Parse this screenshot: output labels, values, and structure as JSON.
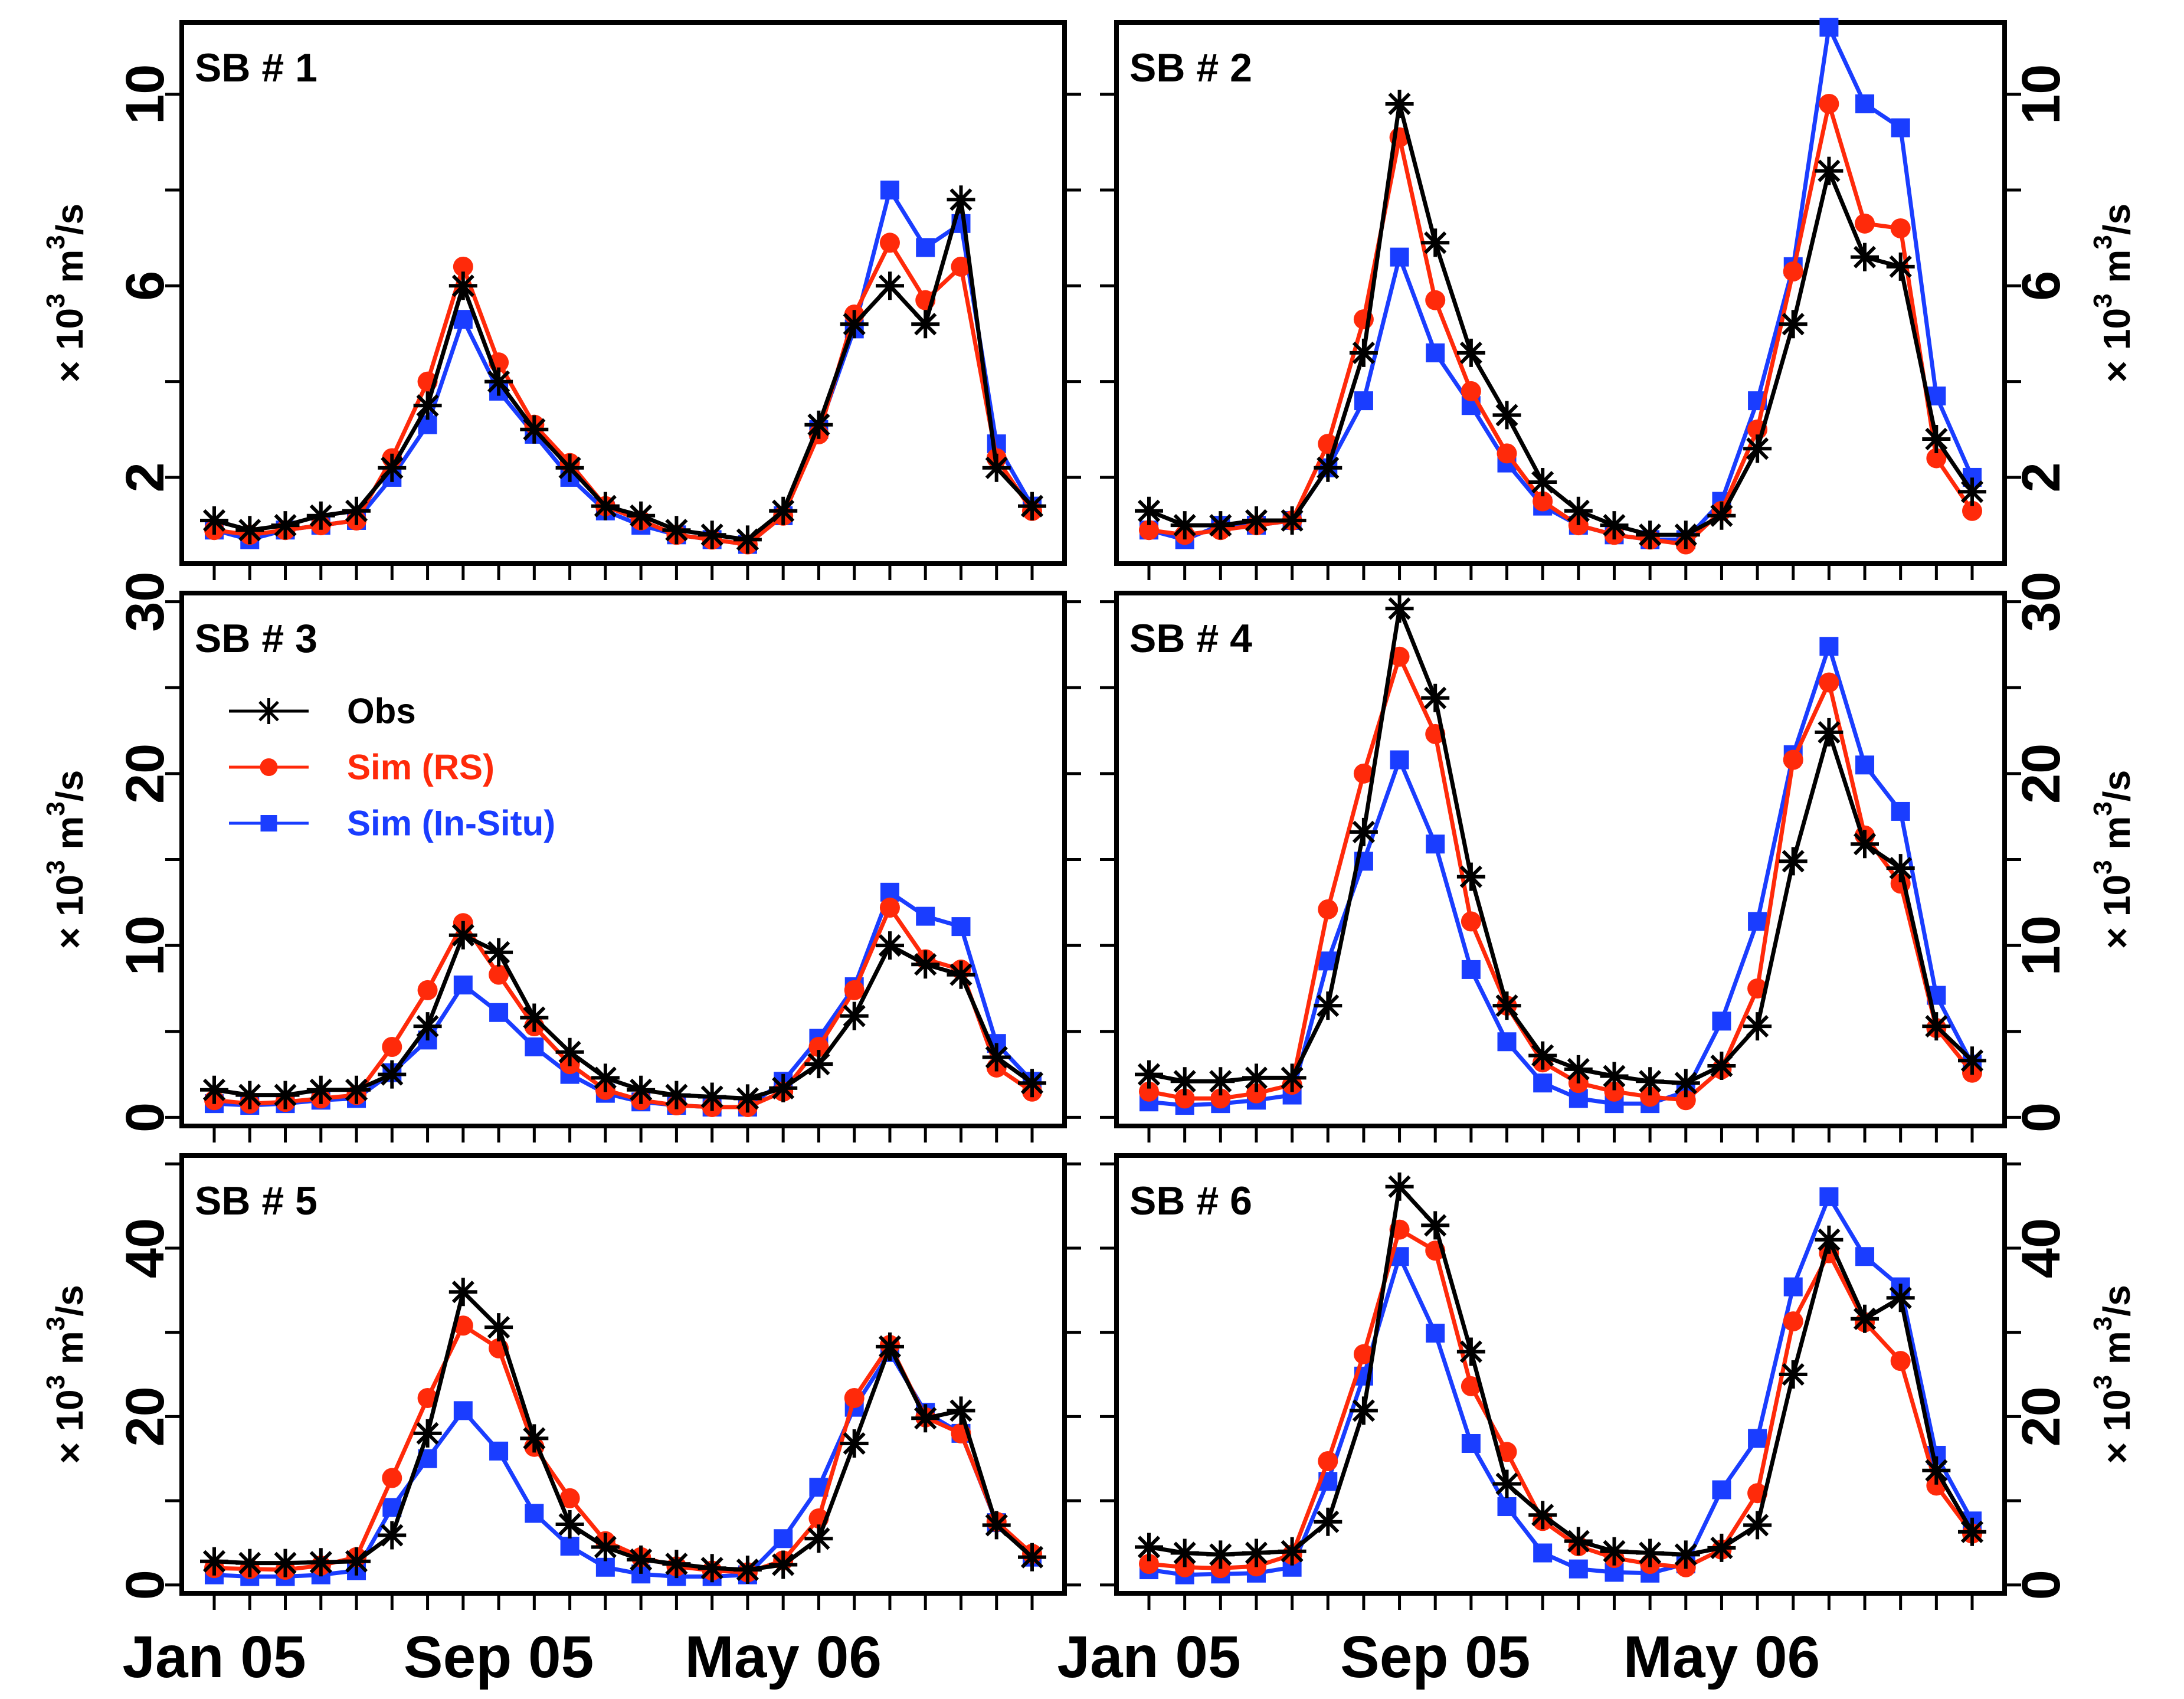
{
  "chart_data": [
    {
      "type": "line",
      "title": "SB # 1",
      "ylabel": "× 10^3 m^3/s",
      "ylim": [
        0.2,
        11.5
      ],
      "yticks": [
        2,
        6,
        10
      ],
      "x_tick_labels": [
        "Jan 05",
        "Sep 05",
        "May 06"
      ],
      "x": [
        1,
        2,
        3,
        4,
        5,
        6,
        7,
        8,
        9,
        10,
        11,
        12,
        13,
        14,
        15,
        16,
        17,
        18,
        19,
        20,
        21,
        22,
        23,
        24
      ],
      "series": [
        {
          "name": "Obs",
          "values": [
            1.1,
            0.9,
            1.0,
            1.2,
            1.3,
            2.2,
            3.5,
            6.0,
            4.0,
            3.0,
            2.2,
            1.4,
            1.2,
            0.9,
            0.8,
            0.7,
            1.3,
            3.1,
            5.2,
            6.0,
            5.2,
            7.8,
            2.2,
            1.4
          ]
        },
        {
          "name": "Sim (RS)",
          "values": [
            0.9,
            0.8,
            0.9,
            1.0,
            1.1,
            2.4,
            4.0,
            6.4,
            4.4,
            3.1,
            2.3,
            1.4,
            1.1,
            0.8,
            0.7,
            0.6,
            1.2,
            2.9,
            5.4,
            6.9,
            5.7,
            6.4,
            2.4,
            1.3
          ]
        },
        {
          "name": "Sim (In-Situ)",
          "values": [
            0.9,
            0.7,
            0.9,
            1.0,
            1.1,
            2.0,
            3.1,
            5.3,
            3.8,
            2.9,
            2.0,
            1.3,
            1.0,
            0.8,
            0.7,
            0.6,
            1.2,
            3.0,
            5.1,
            8.0,
            6.8,
            7.3,
            2.7,
            1.4
          ]
        }
      ]
    },
    {
      "type": "line",
      "title": "SB # 2",
      "ylabel": "× 10^3 m^3/s",
      "ylim": [
        0.2,
        11.5
      ],
      "yticks": [
        2,
        6,
        10
      ],
      "x_tick_labels": [
        "Jan 05",
        "Sep 05",
        "May 06"
      ],
      "x": [
        1,
        2,
        3,
        4,
        5,
        6,
        7,
        8,
        9,
        10,
        11,
        12,
        13,
        14,
        15,
        16,
        17,
        18,
        19,
        20,
        21,
        22,
        23,
        24
      ],
      "series": [
        {
          "name": "Obs",
          "values": [
            1.3,
            1.0,
            1.0,
            1.1,
            1.1,
            2.2,
            4.6,
            9.8,
            6.9,
            4.6,
            3.3,
            1.9,
            1.3,
            1.0,
            0.8,
            0.8,
            1.2,
            2.6,
            5.2,
            8.4,
            6.6,
            6.4,
            2.8,
            1.7
          ]
        },
        {
          "name": "Sim (RS)",
          "values": [
            0.9,
            0.8,
            0.9,
            1.0,
            1.1,
            2.7,
            5.3,
            9.1,
            5.7,
            3.8,
            2.5,
            1.5,
            1.0,
            0.8,
            0.7,
            0.6,
            1.3,
            3.0,
            6.3,
            9.8,
            7.3,
            7.2,
            2.4,
            1.3
          ]
        },
        {
          "name": "Sim (In-Situ)",
          "values": [
            0.9,
            0.7,
            1.0,
            1.0,
            1.1,
            2.2,
            3.6,
            6.6,
            4.6,
            3.5,
            2.3,
            1.4,
            1.0,
            0.8,
            0.7,
            0.7,
            1.5,
            3.6,
            6.4,
            11.4,
            9.8,
            9.3,
            3.7,
            2.0
          ]
        }
      ]
    },
    {
      "type": "line",
      "title": "SB # 3",
      "ylabel": "× 10^3 m^3/s",
      "ylim": [
        -0.5,
        30.5
      ],
      "yticks": [
        0,
        10,
        20,
        30
      ],
      "x_tick_labels": [
        "Jan 05",
        "Sep 05",
        "May 06"
      ],
      "x": [
        1,
        2,
        3,
        4,
        5,
        6,
        7,
        8,
        9,
        10,
        11,
        12,
        13,
        14,
        15,
        16,
        17,
        18,
        19,
        20,
        21,
        22,
        23,
        24
      ],
      "series": [
        {
          "name": "Obs",
          "values": [
            1.6,
            1.3,
            1.3,
            1.6,
            1.6,
            2.5,
            5.3,
            10.6,
            9.6,
            5.8,
            3.8,
            2.3,
            1.6,
            1.3,
            1.2,
            1.1,
            1.7,
            3.1,
            5.9,
            10.0,
            8.9,
            8.3,
            3.5,
            2.0
          ]
        },
        {
          "name": "Sim (RS)",
          "values": [
            1.0,
            0.8,
            0.9,
            1.1,
            1.3,
            4.1,
            7.4,
            11.3,
            8.3,
            5.3,
            3.1,
            1.6,
            1.0,
            0.7,
            0.6,
            0.6,
            1.5,
            4.1,
            7.4,
            12.2,
            9.2,
            8.6,
            2.9,
            1.5
          ]
        },
        {
          "name": "Sim (In-Situ)",
          "values": [
            0.8,
            0.7,
            0.8,
            1.0,
            1.1,
            2.6,
            4.5,
            7.7,
            6.1,
            4.1,
            2.5,
            1.4,
            0.9,
            0.7,
            0.6,
            0.6,
            2.1,
            4.6,
            7.6,
            13.1,
            11.7,
            11.1,
            4.3,
            2.1
          ]
        }
      ]
    },
    {
      "type": "line",
      "title": "SB # 4",
      "ylabel": "× 10^3 m^3/s",
      "ylim": [
        -0.5,
        30.5
      ],
      "yticks": [
        0,
        10,
        20,
        30
      ],
      "x_tick_labels": [
        "Jan 05",
        "Sep 05",
        "May 06"
      ],
      "x": [
        1,
        2,
        3,
        4,
        5,
        6,
        7,
        8,
        9,
        10,
        11,
        12,
        13,
        14,
        15,
        16,
        17,
        18,
        19,
        20,
        21,
        22,
        23,
        24
      ],
      "series": [
        {
          "name": "Obs",
          "values": [
            2.5,
            2.1,
            2.1,
            2.3,
            2.3,
            6.5,
            16.6,
            29.6,
            24.4,
            14.0,
            6.5,
            3.6,
            2.8,
            2.4,
            2.1,
            2.0,
            3.0,
            5.3,
            14.9,
            22.4,
            15.9,
            14.5,
            5.3,
            3.3
          ]
        },
        {
          "name": "Sim (RS)",
          "values": [
            1.5,
            1.1,
            1.1,
            1.4,
            1.9,
            12.1,
            20.0,
            26.8,
            22.3,
            11.4,
            6.5,
            3.2,
            2.0,
            1.5,
            1.2,
            1.0,
            2.8,
            7.5,
            20.8,
            25.3,
            16.4,
            13.6,
            5.2,
            2.6
          ]
        },
        {
          "name": "Sim (In-Situ)",
          "values": [
            0.9,
            0.7,
            0.8,
            1.0,
            1.3,
            9.1,
            14.9,
            20.8,
            15.9,
            8.6,
            4.4,
            2.0,
            1.1,
            0.8,
            0.8,
            1.5,
            5.6,
            11.4,
            21.1,
            27.4,
            20.5,
            17.8,
            7.1,
            3.1
          ]
        }
      ]
    },
    {
      "type": "line",
      "title": "SB # 5",
      "ylabel": "× 10^3 m^3/s",
      "ylim": [
        -1,
        51
      ],
      "yticks": [
        0,
        20,
        40
      ],
      "x_tick_labels": [
        "Jan 05",
        "Sep 05",
        "May 06"
      ],
      "x": [
        1,
        2,
        3,
        4,
        5,
        6,
        7,
        8,
        9,
        10,
        11,
        12,
        13,
        14,
        15,
        16,
        17,
        18,
        19,
        20,
        21,
        22,
        23,
        24
      ],
      "series": [
        {
          "name": "Obs",
          "values": [
            2.8,
            2.6,
            2.6,
            2.7,
            2.8,
            5.9,
            18.0,
            34.8,
            30.6,
            17.4,
            7.2,
            4.5,
            3.0,
            2.5,
            2.0,
            1.8,
            2.4,
            5.5,
            16.8,
            28.3,
            19.8,
            20.7,
            7.1,
            3.3
          ]
        },
        {
          "name": "Sim (RS)",
          "values": [
            2.0,
            1.9,
            1.8,
            2.3,
            3.3,
            12.7,
            22.2,
            30.8,
            28.1,
            16.4,
            10.3,
            5.2,
            3.3,
            2.2,
            1.7,
            1.5,
            2.9,
            7.9,
            22.2,
            28.5,
            19.9,
            18.0,
            7.5,
            3.7
          ]
        },
        {
          "name": "Sim (In-Situ)",
          "values": [
            1.2,
            1.0,
            1.0,
            1.2,
            1.7,
            9.2,
            15.0,
            20.7,
            15.9,
            8.5,
            4.6,
            2.1,
            1.3,
            1.0,
            1.0,
            1.2,
            5.5,
            11.6,
            21.1,
            27.6,
            20.5,
            18.0,
            7.4,
            3.3
          ]
        }
      ]
    },
    {
      "type": "line",
      "title": "SB # 6",
      "ylabel": "× 10^3 m^3/s",
      "ylim": [
        -1,
        51
      ],
      "yticks": [
        0,
        20,
        40
      ],
      "x_tick_labels": [
        "Jan 05",
        "Sep 05",
        "May 06"
      ],
      "x": [
        1,
        2,
        3,
        4,
        5,
        6,
        7,
        8,
        9,
        10,
        11,
        12,
        13,
        14,
        15,
        16,
        17,
        18,
        19,
        20,
        21,
        22,
        23,
        24
      ],
      "series": [
        {
          "name": "Obs",
          "values": [
            4.5,
            3.8,
            3.6,
            3.8,
            4.0,
            7.5,
            20.7,
            47.3,
            42.7,
            27.7,
            12.0,
            8.3,
            5.2,
            4.0,
            3.8,
            3.6,
            4.4,
            7.1,
            25.0,
            41.0,
            31.6,
            34.1,
            13.6,
            6.3
          ]
        },
        {
          "name": "Sim (RS)",
          "values": [
            2.5,
            2.1,
            2.0,
            2.2,
            3.6,
            14.7,
            27.4,
            42.2,
            39.7,
            23.6,
            15.8,
            7.6,
            4.6,
            3.2,
            2.5,
            2.1,
            4.2,
            10.9,
            31.3,
            39.4,
            31.2,
            26.6,
            11.8,
            6.1
          ]
        },
        {
          "name": "Sim (In-Situ)",
          "values": [
            1.8,
            1.2,
            1.3,
            1.4,
            2.1,
            12.3,
            24.8,
            39.0,
            29.9,
            16.8,
            9.3,
            3.8,
            1.9,
            1.5,
            1.4,
            2.5,
            11.3,
            17.4,
            35.4,
            46.1,
            39.0,
            35.4,
            15.4,
            7.6
          ]
        }
      ]
    }
  ],
  "legend": {
    "entries": [
      {
        "label": "Obs",
        "color": "#000000",
        "marker": "star"
      },
      {
        "label": "Sim (RS)",
        "color": "#ff2a0a",
        "marker": "circle"
      },
      {
        "label": "Sim (In-Situ)",
        "color": "#1a3dff",
        "marker": "square"
      }
    ]
  }
}
